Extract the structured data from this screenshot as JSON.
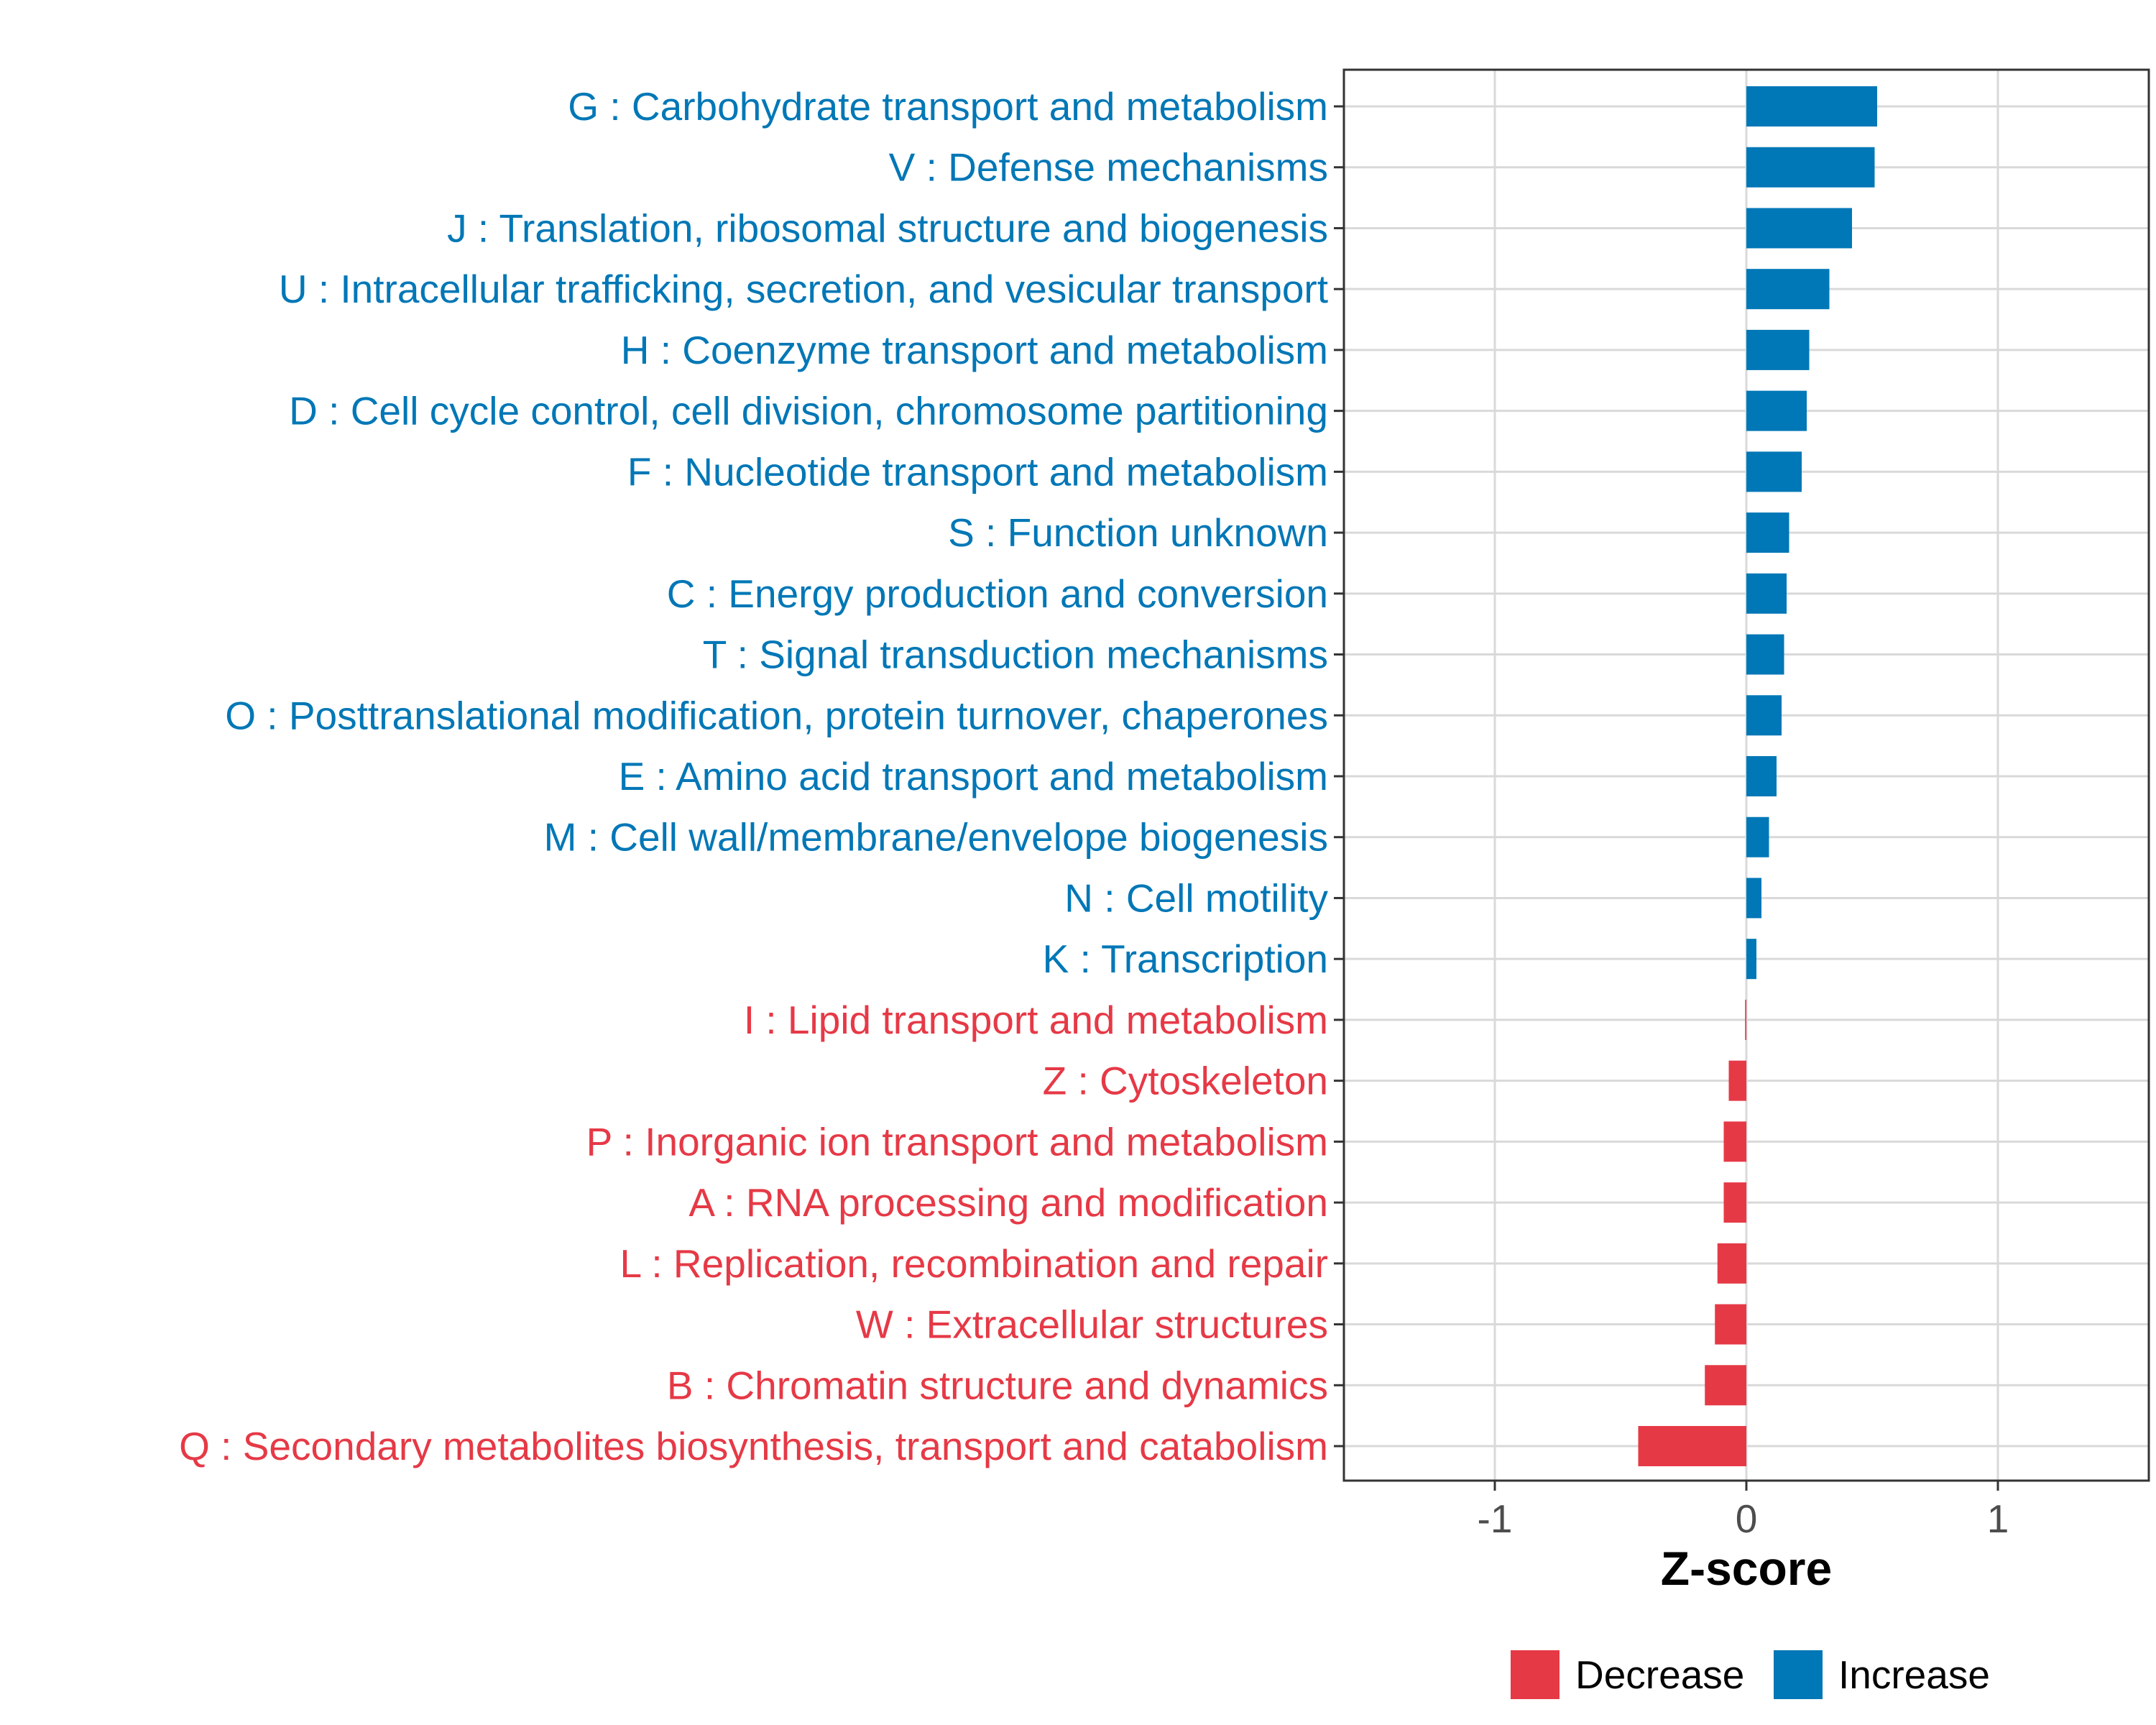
{
  "chart_data": {
    "type": "bar",
    "orientation": "horizontal",
    "xlabel": "Z-score",
    "ylabel": "",
    "xlim": [
      -1.6,
      1.6
    ],
    "x_ticks": [
      -1,
      0,
      1
    ],
    "x_tick_labels": [
      "-1",
      "0",
      "1"
    ],
    "grid": true,
    "legend_position": "bottom",
    "categories": [
      "G : Carbohydrate transport and metabolism",
      "V : Defense mechanisms",
      "J : Translation, ribosomal structure and biogenesis",
      "U : Intracellular trafficking, secretion, and vesicular transport",
      "H : Coenzyme transport and metabolism",
      "D : Cell cycle control, cell division, chromosome partitioning",
      "F : Nucleotide transport and metabolism",
      "S : Function unknown",
      "C : Energy production and conversion",
      "T : Signal transduction mechanisms",
      "O : Posttranslational modification, protein turnover, chaperones",
      "E : Amino acid transport and metabolism",
      "M : Cell wall/membrane/envelope biogenesis",
      "N : Cell motility",
      "K : Transcription",
      "I : Lipid transport and metabolism",
      "Z : Cytoskeleton",
      "P : Inorganic ion transport and metabolism",
      "A : RNA processing and modification",
      "L : Replication, recombination and repair",
      "W : Extracellular structures",
      "B : Chromatin structure and dynamics",
      "Q : Secondary metabolites biosynthesis, transport and catabolism"
    ],
    "values": [
      0.52,
      0.51,
      0.42,
      0.33,
      0.25,
      0.24,
      0.22,
      0.17,
      0.16,
      0.15,
      0.14,
      0.12,
      0.09,
      0.06,
      0.04,
      -0.005,
      -0.07,
      -0.09,
      -0.09,
      -0.115,
      -0.125,
      -0.165,
      -0.43
    ],
    "groups": [
      "Increase",
      "Increase",
      "Increase",
      "Increase",
      "Increase",
      "Increase",
      "Increase",
      "Increase",
      "Increase",
      "Increase",
      "Increase",
      "Increase",
      "Increase",
      "Increase",
      "Increase",
      "Decrease",
      "Decrease",
      "Decrease",
      "Decrease",
      "Decrease",
      "Decrease",
      "Decrease",
      "Decrease"
    ],
    "legend": [
      {
        "name": "Decrease",
        "color": "#e63946"
      },
      {
        "name": "Increase",
        "color": "#0077b6"
      }
    ],
    "colors": {
      "Increase": "#0077b6",
      "Decrease": "#e63946"
    }
  }
}
